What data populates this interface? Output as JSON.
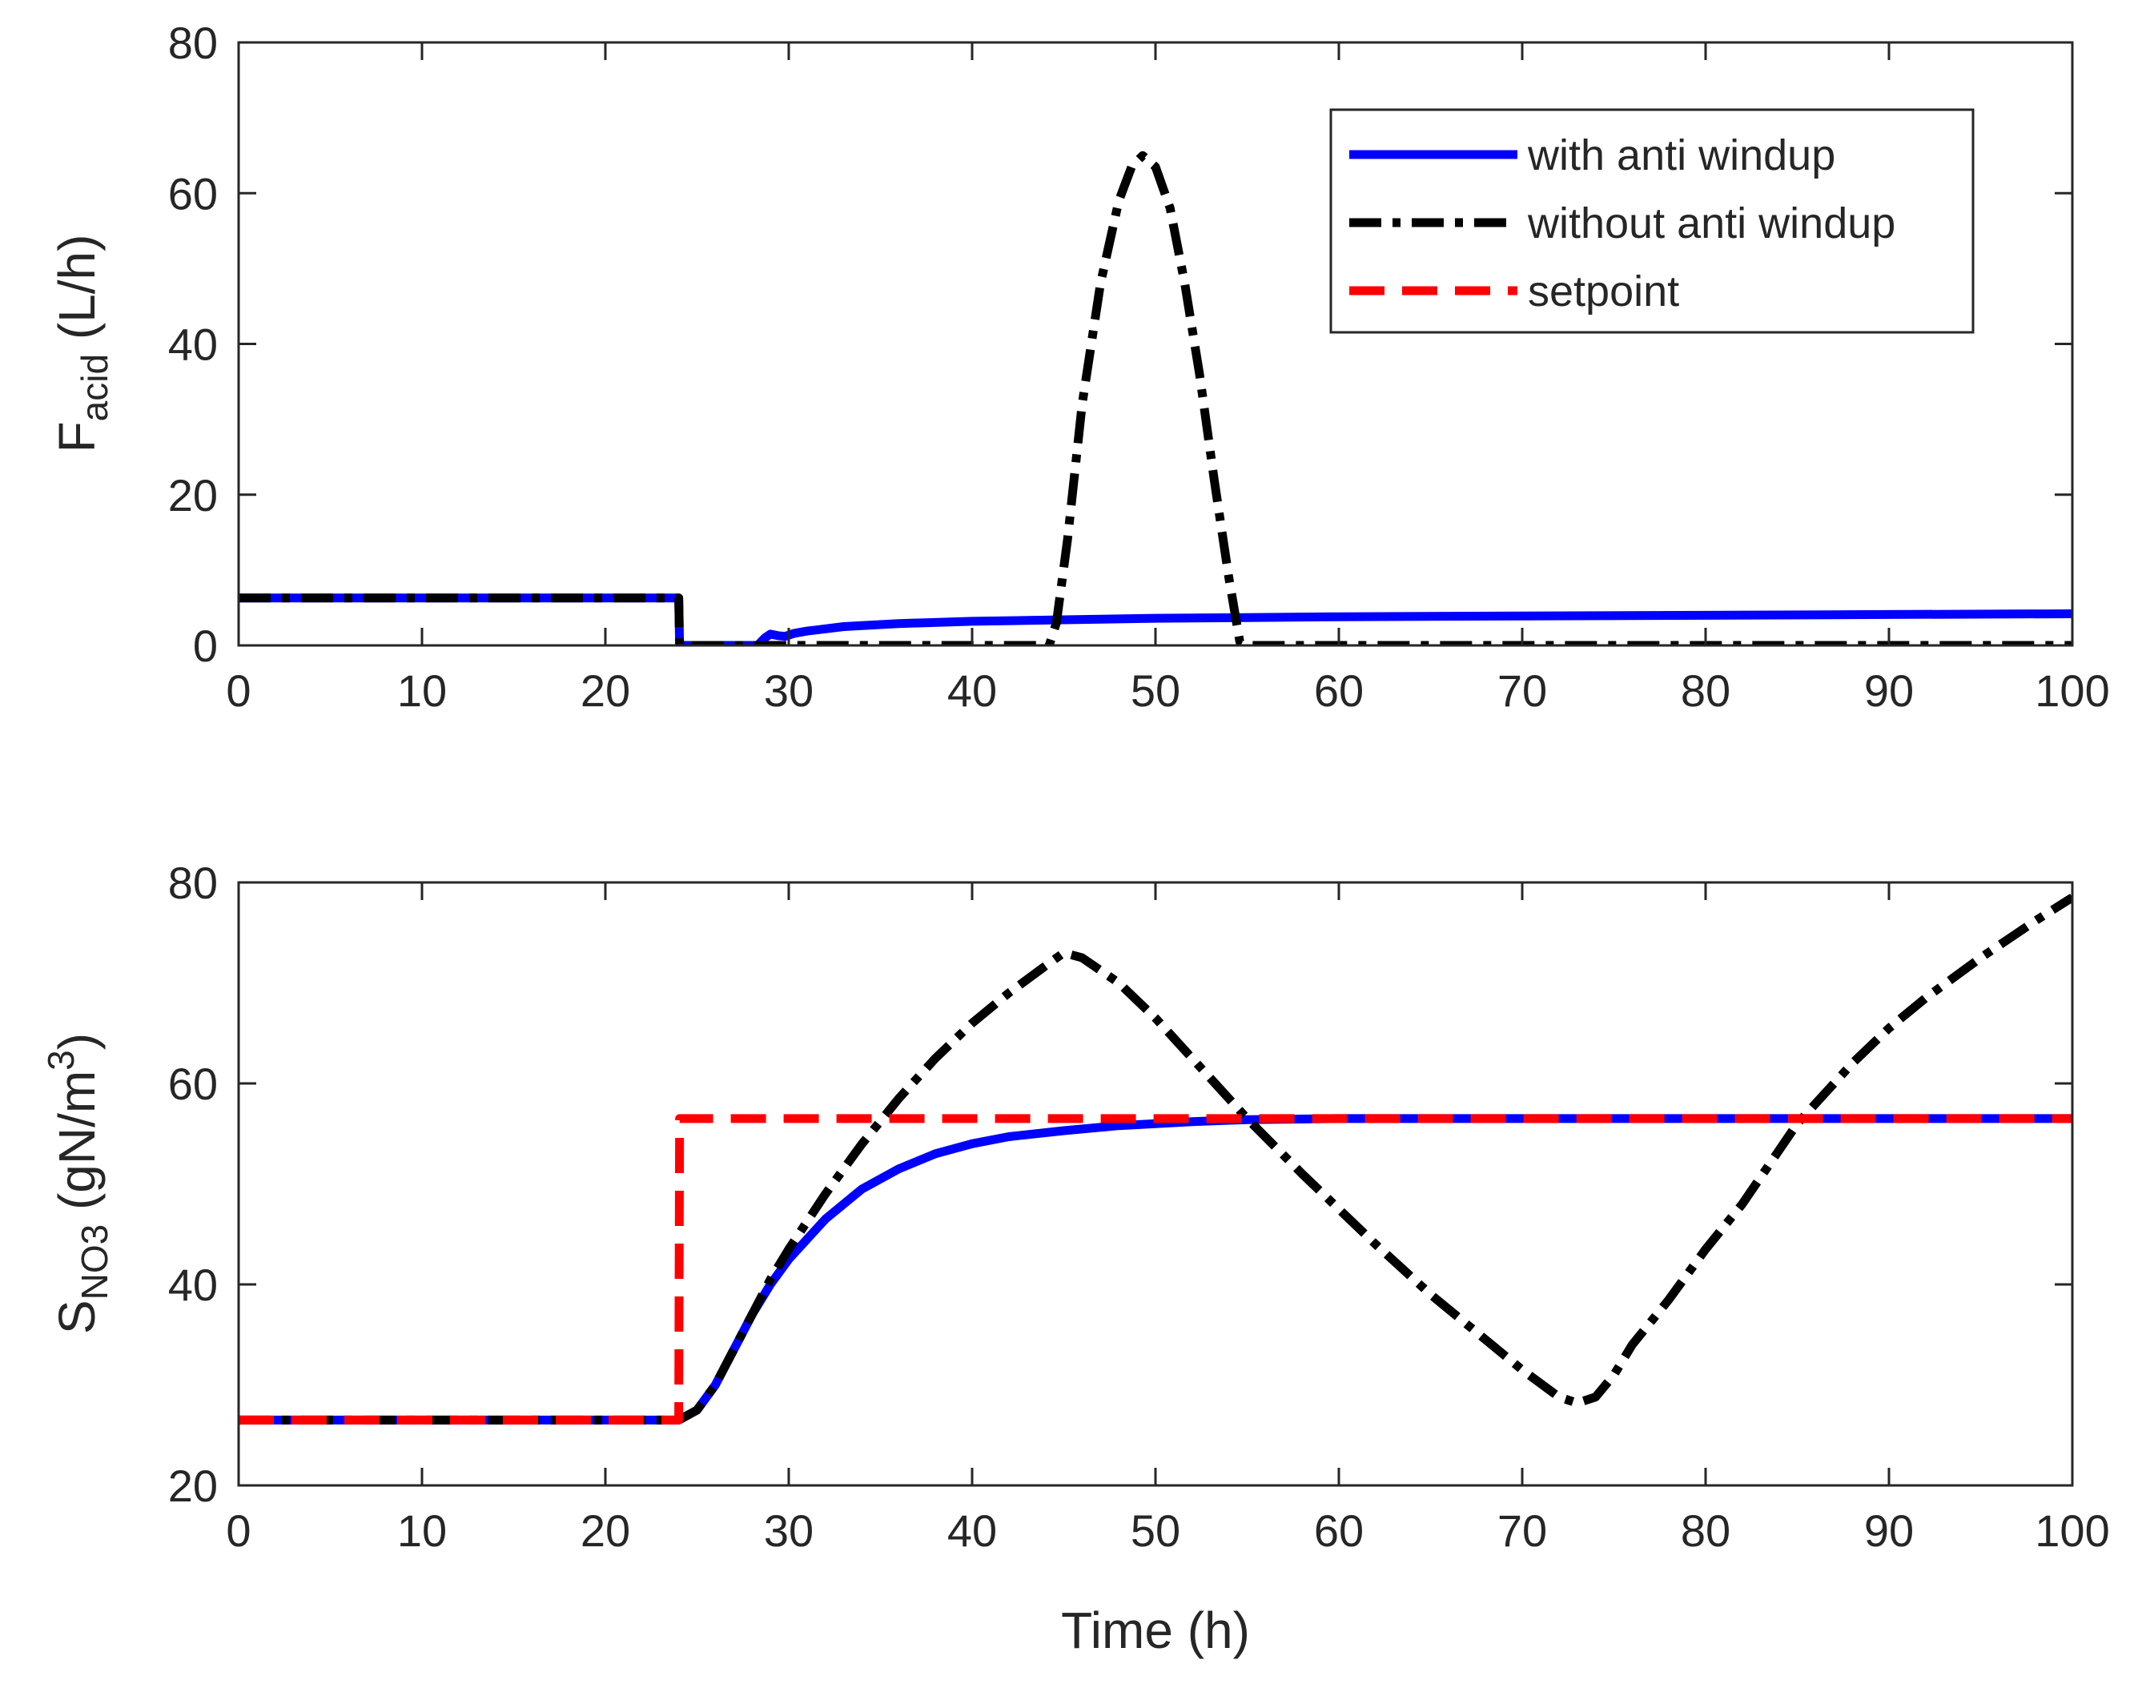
{
  "chart_data": [
    {
      "type": "line",
      "ylabel_main": "F",
      "ylabel_sub": "acid",
      "ylabel_units": " (L/h)",
      "xlim": [
        0,
        100
      ],
      "ylim": [
        0,
        80
      ],
      "xticks": [
        0,
        10,
        20,
        30,
        40,
        50,
        60,
        70,
        80,
        90,
        100
      ],
      "yticks": [
        0,
        20,
        40,
        60,
        80
      ],
      "legend": {
        "position": "top-right",
        "entries": [
          "with anti windup",
          "without anti windup",
          "setpoint"
        ]
      },
      "series": [
        {
          "name": "with anti windup",
          "color": "#0000ff",
          "style": "solid",
          "x": [
            0,
            24,
            24.05,
            28.3,
            28.7,
            29,
            29.4,
            29.8,
            30.3,
            31,
            33,
            36,
            40,
            45,
            50,
            55,
            60,
            70,
            80,
            90,
            100
          ],
          "y": [
            6.3,
            6.3,
            0,
            0,
            1.0,
            1.5,
            1.3,
            1.2,
            1.6,
            1.9,
            2.5,
            2.9,
            3.2,
            3.4,
            3.6,
            3.7,
            3.8,
            3.9,
            4.0,
            4.1,
            4.2
          ]
        },
        {
          "name": "without anti windup",
          "color": "#000000",
          "style": "dashdot",
          "x": [
            0,
            24,
            24.05,
            44.2,
            44.6,
            45.2,
            46,
            47,
            48,
            48.7,
            49.3,
            50,
            50.8,
            51.6,
            52.4,
            53.2,
            54,
            54.6,
            55,
            100
          ],
          "y": [
            6.3,
            6.3,
            0,
            0,
            3.0,
            14,
            32,
            48,
            59,
            63.5,
            65,
            63.5,
            58,
            48,
            36,
            22,
            9,
            0.5,
            0,
            0
          ]
        }
      ]
    },
    {
      "type": "line",
      "ylabel_main": "S",
      "ylabel_sub": "NO3",
      "ylabel_units": "  (gN/m",
      "ylabel_sup": "3",
      "ylabel_close": ")",
      "xlabel": "Time (h)",
      "xlim": [
        0,
        100
      ],
      "ylim": [
        20,
        80
      ],
      "xticks": [
        0,
        10,
        20,
        30,
        40,
        50,
        60,
        70,
        80,
        90,
        100
      ],
      "yticks": [
        20,
        40,
        60,
        80
      ],
      "series": [
        {
          "name": "with anti windup",
          "color": "#0000ff",
          "style": "solid",
          "x": [
            0,
            24,
            25,
            26,
            27,
            28,
            29,
            30,
            32,
            34,
            36,
            38,
            40,
            42,
            45,
            48,
            50,
            52,
            55,
            60,
            70,
            80,
            90,
            100
          ],
          "y": [
            26.5,
            26.5,
            27.5,
            30,
            33.5,
            37,
            40,
            42.5,
            46.5,
            49.5,
            51.5,
            53,
            54,
            54.7,
            55.3,
            55.8,
            56.0,
            56.2,
            56.4,
            56.5,
            56.5,
            56.5,
            56.5,
            56.5
          ]
        },
        {
          "name": "without anti windup",
          "color": "#000000",
          "style": "dashdot",
          "x": [
            0,
            24,
            25,
            26,
            27,
            28,
            29,
            30,
            32,
            34,
            36,
            38,
            40,
            42,
            44,
            45,
            46,
            48,
            50,
            52,
            55,
            58,
            60,
            62,
            65,
            68,
            70,
            72,
            73,
            74,
            75,
            76,
            78,
            80,
            82,
            85,
            88,
            90,
            92,
            95,
            98,
            100
          ],
          "y": [
            26.5,
            26.5,
            27.5,
            30,
            33.5,
            37,
            40.5,
            43.5,
            49,
            54,
            58.5,
            62.5,
            66,
            69,
            71.7,
            73,
            72.5,
            70,
            66.5,
            62.5,
            56.5,
            51,
            47.5,
            44,
            39,
            34.5,
            31.5,
            28.8,
            28.2,
            28.8,
            31,
            34,
            38.5,
            43.5,
            48,
            56,
            62,
            65.5,
            68.5,
            72.5,
            76.2,
            78.5
          ]
        },
        {
          "name": "setpoint",
          "color": "#ff0000",
          "style": "dashed",
          "x": [
            0,
            24,
            24.05,
            100
          ],
          "y": [
            26.5,
            26.5,
            56.5,
            56.5
          ]
        }
      ]
    }
  ]
}
